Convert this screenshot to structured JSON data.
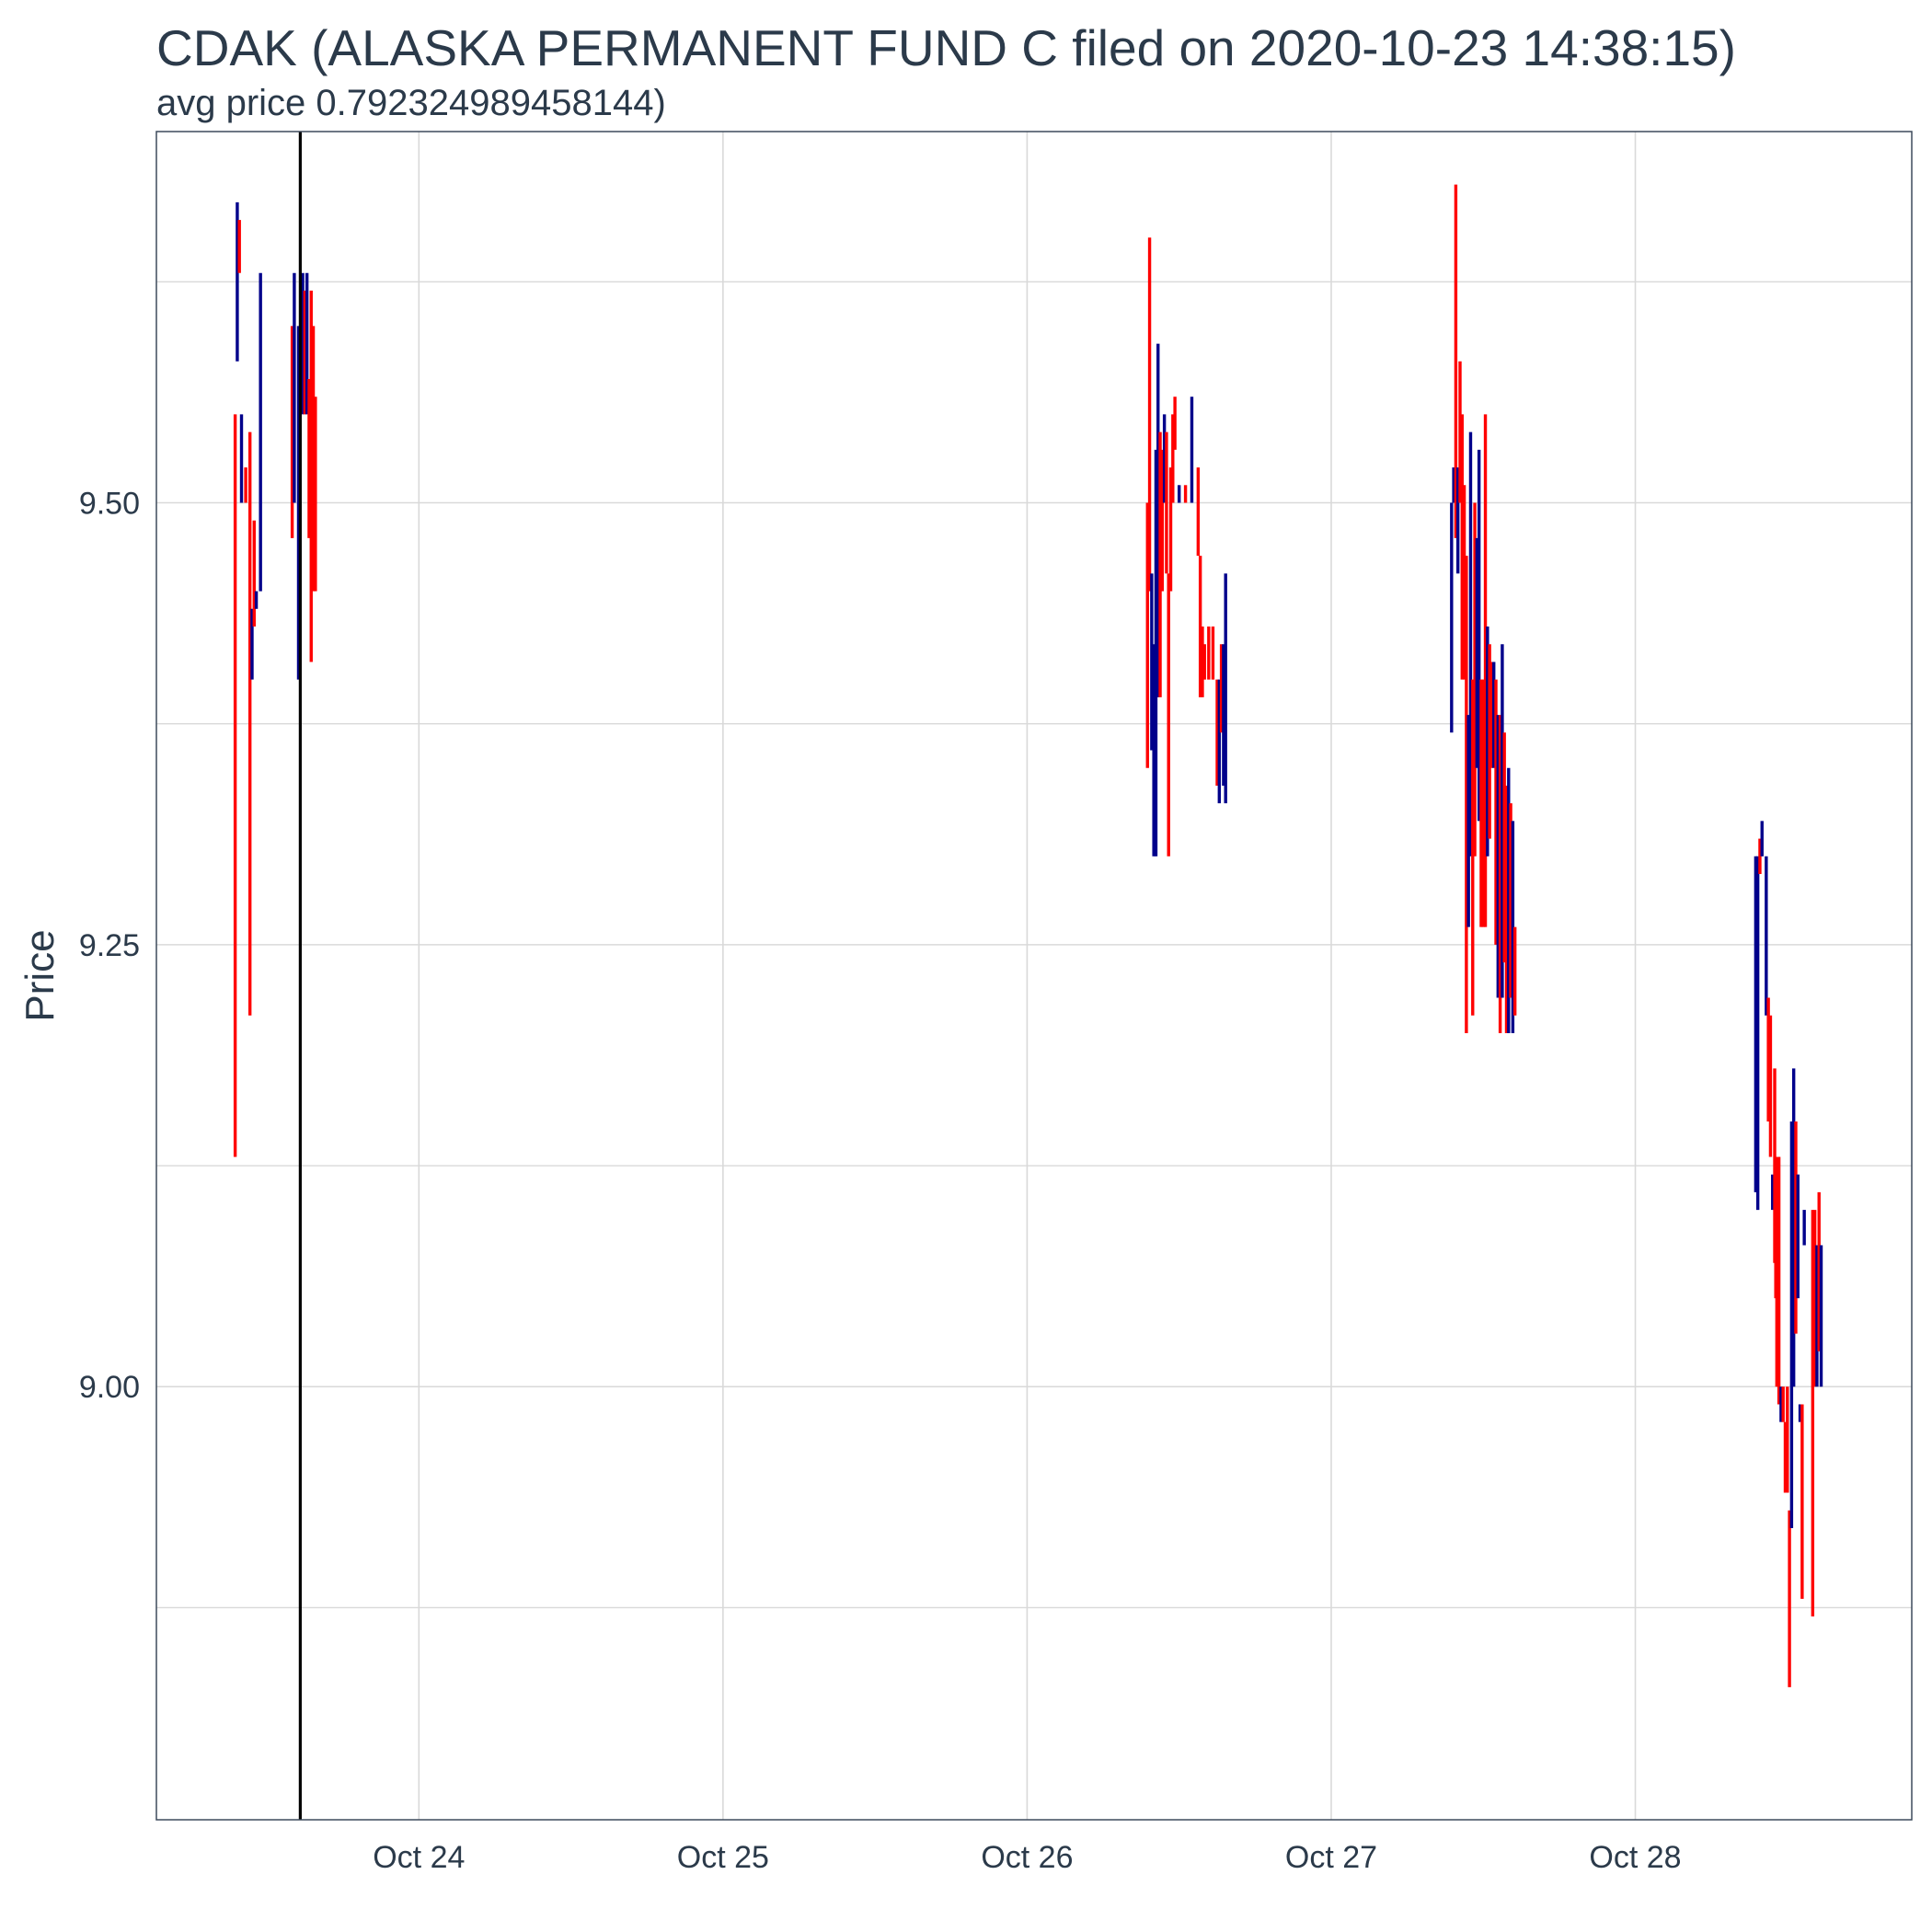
{
  "chart_data": {
    "type": "ohlc",
    "title": "CDAK (ALASKA PERMANENT FUND C filed on 2020-10-23 14:38:15)",
    "subtitle": "avg price 0.792324989458144)",
    "xlabel": "",
    "ylabel": "Price",
    "ylim": [
      8.755,
      9.71
    ],
    "xlim": [
      "2020-10-23T03:17",
      "2020-10-28T21:49"
    ],
    "x_ticks": [
      {
        "value": "2020-10-24T00:00",
        "label": "Oct 24"
      },
      {
        "value": "2020-10-25T00:00",
        "label": "Oct 25"
      },
      {
        "value": "2020-10-26T00:00",
        "label": "Oct 26"
      },
      {
        "value": "2020-10-27T00:00",
        "label": "Oct 27"
      },
      {
        "value": "2020-10-28T00:00",
        "label": "Oct 28"
      }
    ],
    "y_ticks": [
      {
        "value": 9.0,
        "label": "9.00"
      },
      {
        "value": 9.25,
        "label": "9.25"
      },
      {
        "value": 9.5,
        "label": "9.50"
      }
    ],
    "y_minor_grid": [
      8.875,
      9.125,
      9.375,
      9.625
    ],
    "grid": true,
    "filing_marker": "2020-10-23T14:38:15",
    "colors": {
      "up": "#00008b",
      "down": "#ff0000",
      "grid": "#d9d9d9",
      "frame": "#3d4a5c",
      "marker": "#000000"
    },
    "bars": [
      {
        "t": "2020-10-23T09:30",
        "low": 9.13,
        "high": 9.55,
        "dir": "down"
      },
      {
        "t": "2020-10-23T09:40",
        "low": 9.58,
        "high": 9.67,
        "dir": "up"
      },
      {
        "t": "2020-10-23T09:50",
        "low": 9.63,
        "high": 9.66,
        "dir": "down"
      },
      {
        "t": "2020-10-23T10:00",
        "low": 9.5,
        "high": 9.55,
        "dir": "up"
      },
      {
        "t": "2020-10-23T10:20",
        "low": 9.5,
        "high": 9.52,
        "dir": "down"
      },
      {
        "t": "2020-10-23T10:40",
        "low": 9.21,
        "high": 9.54,
        "dir": "down"
      },
      {
        "t": "2020-10-23T10:50",
        "low": 9.4,
        "high": 9.44,
        "dir": "up"
      },
      {
        "t": "2020-10-23T11:00",
        "low": 9.43,
        "high": 9.49,
        "dir": "down"
      },
      {
        "t": "2020-10-23T11:10",
        "low": 9.44,
        "high": 9.45,
        "dir": "up"
      },
      {
        "t": "2020-10-23T11:30",
        "low": 9.45,
        "high": 9.63,
        "dir": "up"
      },
      {
        "t": "2020-10-23T14:00",
        "low": 9.48,
        "high": 9.6,
        "dir": "down"
      },
      {
        "t": "2020-10-23T14:10",
        "low": 9.5,
        "high": 9.63,
        "dir": "up"
      },
      {
        "t": "2020-10-23T14:30",
        "low": 9.4,
        "high": 9.6,
        "dir": "up"
      },
      {
        "t": "2020-10-23T14:50",
        "low": 9.55,
        "high": 9.63,
        "dir": "up"
      },
      {
        "t": "2020-10-23T15:00",
        "low": 9.55,
        "high": 9.62,
        "dir": "down"
      },
      {
        "t": "2020-10-23T15:10",
        "low": 9.55,
        "high": 9.63,
        "dir": "up"
      },
      {
        "t": "2020-10-23T15:20",
        "low": 9.48,
        "high": 9.57,
        "dir": "down"
      },
      {
        "t": "2020-10-23T15:30",
        "low": 9.41,
        "high": 9.62,
        "dir": "down"
      },
      {
        "t": "2020-10-23T15:40",
        "low": 9.45,
        "high": 9.6,
        "dir": "down"
      },
      {
        "t": "2020-10-23T15:50",
        "low": 9.45,
        "high": 9.56,
        "dir": "down"
      },
      {
        "t": "2020-10-26T09:30",
        "low": 9.35,
        "high": 9.5,
        "dir": "down"
      },
      {
        "t": "2020-10-26T09:40",
        "low": 9.45,
        "high": 9.65,
        "dir": "down"
      },
      {
        "t": "2020-10-26T09:50",
        "low": 9.36,
        "high": 9.46,
        "dir": "up"
      },
      {
        "t": "2020-10-26T10:00",
        "low": 9.3,
        "high": 9.42,
        "dir": "up"
      },
      {
        "t": "2020-10-26T10:10",
        "low": 9.3,
        "high": 9.53,
        "dir": "up"
      },
      {
        "t": "2020-10-26T10:20",
        "low": 9.39,
        "high": 9.59,
        "dir": "up"
      },
      {
        "t": "2020-10-26T10:30",
        "low": 9.39,
        "high": 9.54,
        "dir": "down"
      },
      {
        "t": "2020-10-26T10:40",
        "low": 9.45,
        "high": 9.53,
        "dir": "down"
      },
      {
        "t": "2020-10-26T10:50",
        "low": 9.5,
        "high": 9.55,
        "dir": "up"
      },
      {
        "t": "2020-10-26T11:00",
        "low": 9.46,
        "high": 9.54,
        "dir": "down"
      },
      {
        "t": "2020-10-26T11:10",
        "low": 9.3,
        "high": 9.46,
        "dir": "down"
      },
      {
        "t": "2020-10-26T11:20",
        "low": 9.45,
        "high": 9.52,
        "dir": "down"
      },
      {
        "t": "2020-10-26T11:30",
        "low": 9.5,
        "high": 9.55,
        "dir": "down"
      },
      {
        "t": "2020-10-26T11:40",
        "low": 9.53,
        "high": 9.56,
        "dir": "down"
      },
      {
        "t": "2020-10-26T12:00",
        "low": 9.5,
        "high": 9.51,
        "dir": "up"
      },
      {
        "t": "2020-10-26T12:30",
        "low": 9.5,
        "high": 9.51,
        "dir": "down"
      },
      {
        "t": "2020-10-26T13:00",
        "low": 9.5,
        "high": 9.56,
        "dir": "up"
      },
      {
        "t": "2020-10-26T13:30",
        "low": 9.47,
        "high": 9.52,
        "dir": "down"
      },
      {
        "t": "2020-10-26T13:40",
        "low": 9.39,
        "high": 9.47,
        "dir": "down"
      },
      {
        "t": "2020-10-26T13:50",
        "low": 9.39,
        "high": 9.43,
        "dir": "down"
      },
      {
        "t": "2020-10-26T14:00",
        "low": 9.4,
        "high": 9.42,
        "dir": "down"
      },
      {
        "t": "2020-10-26T14:20",
        "low": 9.4,
        "high": 9.43,
        "dir": "down"
      },
      {
        "t": "2020-10-26T14:40",
        "low": 9.4,
        "high": 9.43,
        "dir": "down"
      },
      {
        "t": "2020-10-26T15:00",
        "low": 9.34,
        "high": 9.4,
        "dir": "down"
      },
      {
        "t": "2020-10-26T15:10",
        "low": 9.33,
        "high": 9.4,
        "dir": "up"
      },
      {
        "t": "2020-10-26T15:20",
        "low": 9.37,
        "high": 9.42,
        "dir": "down"
      },
      {
        "t": "2020-10-26T15:30",
        "low": 9.34,
        "high": 9.42,
        "dir": "up"
      },
      {
        "t": "2020-10-26T15:40",
        "low": 9.33,
        "high": 9.46,
        "dir": "up"
      },
      {
        "t": "2020-10-27T09:30",
        "low": 9.37,
        "high": 9.5,
        "dir": "up"
      },
      {
        "t": "2020-10-27T09:40",
        "low": 9.5,
        "high": 9.52,
        "dir": "up"
      },
      {
        "t": "2020-10-27T09:50",
        "low": 9.48,
        "high": 9.68,
        "dir": "down"
      },
      {
        "t": "2020-10-27T10:00",
        "low": 9.46,
        "high": 9.52,
        "dir": "up"
      },
      {
        "t": "2020-10-27T10:10",
        "low": 9.5,
        "high": 9.58,
        "dir": "down"
      },
      {
        "t": "2020-10-27T10:20",
        "low": 9.4,
        "high": 9.55,
        "dir": "down"
      },
      {
        "t": "2020-10-27T10:30",
        "low": 9.4,
        "high": 9.51,
        "dir": "down"
      },
      {
        "t": "2020-10-27T10:40",
        "low": 9.2,
        "high": 9.47,
        "dir": "down"
      },
      {
        "t": "2020-10-27T10:50",
        "low": 9.26,
        "high": 9.38,
        "dir": "up"
      },
      {
        "t": "2020-10-27T11:00",
        "low": 9.3,
        "high": 9.54,
        "dir": "up"
      },
      {
        "t": "2020-10-27T11:10",
        "low": 9.21,
        "high": 9.4,
        "dir": "down"
      },
      {
        "t": "2020-10-27T11:20",
        "low": 9.3,
        "high": 9.5,
        "dir": "down"
      },
      {
        "t": "2020-10-27T11:30",
        "low": 9.35,
        "high": 9.48,
        "dir": "up"
      },
      {
        "t": "2020-10-27T11:40",
        "low": 9.32,
        "high": 9.53,
        "dir": "up"
      },
      {
        "t": "2020-10-27T11:50",
        "low": 9.26,
        "high": 9.4,
        "dir": "down"
      },
      {
        "t": "2020-10-27T12:00",
        "low": 9.26,
        "high": 9.4,
        "dir": "down"
      },
      {
        "t": "2020-10-27T12:10",
        "low": 9.26,
        "high": 9.55,
        "dir": "down"
      },
      {
        "t": "2020-10-27T12:20",
        "low": 9.3,
        "high": 9.43,
        "dir": "up"
      },
      {
        "t": "2020-10-27T12:30",
        "low": 9.31,
        "high": 9.42,
        "dir": "down"
      },
      {
        "t": "2020-10-27T12:40",
        "low": 9.35,
        "high": 9.41,
        "dir": "down"
      },
      {
        "t": "2020-10-27T12:50",
        "low": 9.35,
        "high": 9.41,
        "dir": "up"
      },
      {
        "t": "2020-10-27T13:00",
        "low": 9.25,
        "high": 9.4,
        "dir": "down"
      },
      {
        "t": "2020-10-27T13:10",
        "low": 9.22,
        "high": 9.38,
        "dir": "up"
      },
      {
        "t": "2020-10-27T13:20",
        "low": 9.2,
        "high": 9.38,
        "dir": "down"
      },
      {
        "t": "2020-10-27T13:30",
        "low": 9.22,
        "high": 9.42,
        "dir": "up"
      },
      {
        "t": "2020-10-27T13:40",
        "low": 9.24,
        "high": 9.37,
        "dir": "down"
      },
      {
        "t": "2020-10-27T13:50",
        "low": 9.2,
        "high": 9.34,
        "dir": "down"
      },
      {
        "t": "2020-10-27T14:00",
        "low": 9.2,
        "high": 9.35,
        "dir": "up"
      },
      {
        "t": "2020-10-27T14:10",
        "low": 9.22,
        "high": 9.33,
        "dir": "down"
      },
      {
        "t": "2020-10-27T14:20",
        "low": 9.2,
        "high": 9.32,
        "dir": "up"
      },
      {
        "t": "2020-10-27T14:30",
        "low": 9.21,
        "high": 9.26,
        "dir": "down"
      },
      {
        "t": "2020-10-28T09:30",
        "low": 9.11,
        "high": 9.3,
        "dir": "up"
      },
      {
        "t": "2020-10-28T09:40",
        "low": 9.1,
        "high": 9.3,
        "dir": "up"
      },
      {
        "t": "2020-10-28T09:50",
        "low": 9.29,
        "high": 9.31,
        "dir": "down"
      },
      {
        "t": "2020-10-28T10:00",
        "low": 9.3,
        "high": 9.32,
        "dir": "up"
      },
      {
        "t": "2020-10-28T10:20",
        "low": 9.21,
        "high": 9.3,
        "dir": "up"
      },
      {
        "t": "2020-10-28T10:30",
        "low": 9.15,
        "high": 9.22,
        "dir": "down"
      },
      {
        "t": "2020-10-28T10:40",
        "low": 9.13,
        "high": 9.21,
        "dir": "down"
      },
      {
        "t": "2020-10-28T10:50",
        "low": 9.1,
        "high": 9.12,
        "dir": "up"
      },
      {
        "t": "2020-10-28T11:00",
        "low": 9.07,
        "high": 9.18,
        "dir": "down"
      },
      {
        "t": "2020-10-28T11:05",
        "low": 9.05,
        "high": 9.12,
        "dir": "down"
      },
      {
        "t": "2020-10-28T11:10",
        "low": 9.0,
        "high": 9.13,
        "dir": "down"
      },
      {
        "t": "2020-10-28T11:20",
        "low": 8.99,
        "high": 9.13,
        "dir": "down"
      },
      {
        "t": "2020-10-28T11:30",
        "low": 8.98,
        "high": 9.0,
        "dir": "up"
      },
      {
        "t": "2020-10-28T11:40",
        "low": 8.98,
        "high": 9.0,
        "dir": "down"
      },
      {
        "t": "2020-10-28T11:50",
        "low": 8.94,
        "high": 8.98,
        "dir": "down"
      },
      {
        "t": "2020-10-28T12:00",
        "low": 8.94,
        "high": 9.0,
        "dir": "down"
      },
      {
        "t": "2020-10-28T12:10",
        "low": 8.83,
        "high": 8.93,
        "dir": "down"
      },
      {
        "t": "2020-10-28T12:20",
        "low": 8.92,
        "high": 9.15,
        "dir": "up"
      },
      {
        "t": "2020-10-28T12:30",
        "low": 9.0,
        "high": 9.18,
        "dir": "up"
      },
      {
        "t": "2020-10-28T12:40",
        "low": 9.03,
        "high": 9.15,
        "dir": "down"
      },
      {
        "t": "2020-10-28T12:50",
        "low": 9.05,
        "high": 9.12,
        "dir": "up"
      },
      {
        "t": "2020-10-28T13:00",
        "low": 8.98,
        "high": 8.99,
        "dir": "up"
      },
      {
        "t": "2020-10-28T13:10",
        "low": 8.88,
        "high": 8.99,
        "dir": "down"
      },
      {
        "t": "2020-10-28T13:20",
        "low": 9.08,
        "high": 9.1,
        "dir": "up"
      },
      {
        "t": "2020-10-28T14:00",
        "low": 8.87,
        "high": 9.1,
        "dir": "down"
      },
      {
        "t": "2020-10-28T14:10",
        "low": 9.0,
        "high": 9.1,
        "dir": "down"
      },
      {
        "t": "2020-10-28T14:20",
        "low": 9.0,
        "high": 9.08,
        "dir": "up"
      },
      {
        "t": "2020-10-28T14:30",
        "low": 9.02,
        "high": 9.11,
        "dir": "down"
      },
      {
        "t": "2020-10-28T14:40",
        "low": 9.0,
        "high": 9.08,
        "dir": "up"
      }
    ]
  }
}
